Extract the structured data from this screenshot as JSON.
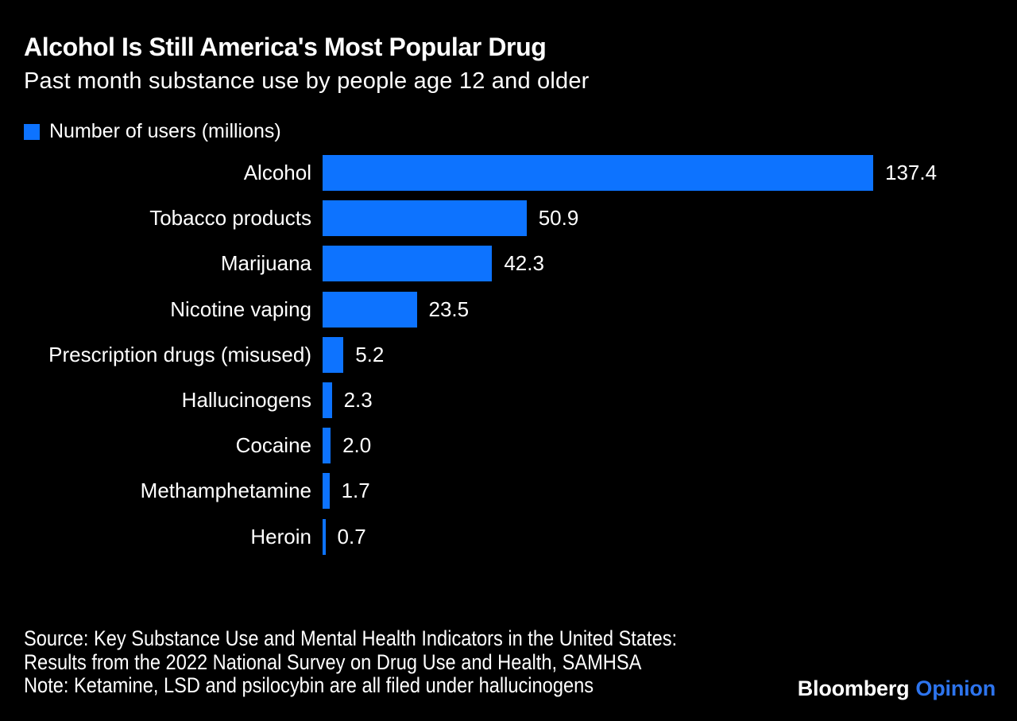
{
  "chart_data": {
    "type": "bar",
    "orientation": "horizontal",
    "title": "Alcohol Is Still America's Most Popular Drug",
    "subtitle": "Past month substance use by people age 12 and older",
    "legend_label": "Number of users (millions)",
    "legend_position": "top-left",
    "categories": [
      "Alcohol",
      "Tobacco products",
      "Marijuana",
      "Nicotine vaping",
      "Prescription drugs (misused)",
      "Hallucinogens",
      "Cocaine",
      "Methamphetamine",
      "Heroin"
    ],
    "values": [
      137.4,
      50.9,
      42.3,
      23.5,
      5.2,
      2.3,
      2.0,
      1.7,
      0.7
    ],
    "value_label_decimals": 1,
    "xlabel": "",
    "ylabel": "",
    "xlim": [
      0,
      140
    ],
    "gridlines": false,
    "bar_color": "#0d73ff",
    "background_color": "#000000",
    "text_color": "#ffffff"
  },
  "footer": {
    "source_line1": "Source: Key Substance Use and Mental Health Indicators in the United States:",
    "source_line2": "Results from the 2022 National Survey on Drug Use and Health, SAMHSA",
    "note": "Note: Ketamine, LSD and psilocybin are all filed under hallucinogens"
  },
  "branding": {
    "brand": "Bloomberg",
    "edition": "Opinion",
    "brand_color": "#ffffff",
    "edition_color": "#2d74ee"
  }
}
